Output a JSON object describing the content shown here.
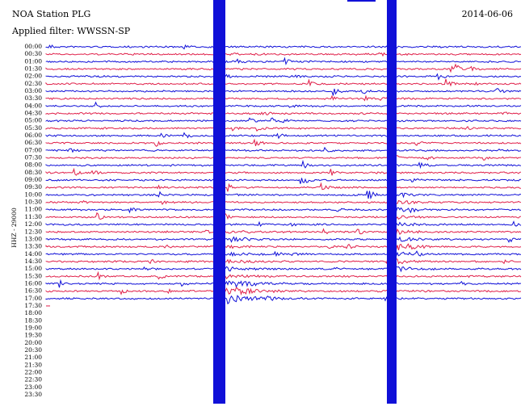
{
  "header": {
    "station": "NOA Station PLG",
    "date": "2014-06-06",
    "filter": "Applied filter: WWSSN-SP"
  },
  "channel_label": "HHZ - 29000",
  "time_labels": [
    "00:00",
    "00:30",
    "01:00",
    "01:30",
    "02:00",
    "02:30",
    "03:00",
    "03:30",
    "04:00",
    "04:30",
    "05:00",
    "05:30",
    "06:00",
    "06:30",
    "07:00",
    "07:30",
    "08:00",
    "08:30",
    "09:00",
    "09:30",
    "10:00",
    "10:30",
    "11:00",
    "11:30",
    "12:00",
    "12:30",
    "13:00",
    "13:30",
    "14:00",
    "14:30",
    "15:00",
    "15:30",
    "16:00",
    "16:30",
    "17:00",
    "17:30",
    "18:00",
    "18:30",
    "19:00",
    "19:30",
    "20:00",
    "20:30",
    "21:00",
    "21:30",
    "22:00",
    "22:30",
    "23:00",
    "23:30"
  ]
}
